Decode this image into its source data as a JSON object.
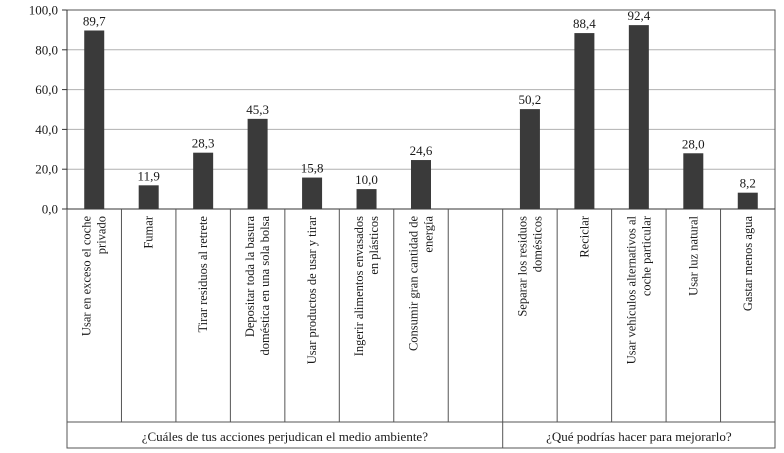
{
  "chart_data": {
    "type": "bar",
    "ylim": [
      0,
      100
    ],
    "yticks": [
      "0,0",
      "20,0",
      "40,0",
      "60,0",
      "80,0",
      "100,0"
    ],
    "ytick_values": [
      0,
      20,
      40,
      60,
      80,
      100
    ],
    "grid": true,
    "bar_color": "#3a3a3a",
    "grid_color": "#b0b0b0",
    "groups": [
      {
        "label": "¿Cuáles de tus acciones perjudican el medio ambiente?",
        "categories": [
          {
            "label": [
              "Usar en exceso el coche",
              "privado"
            ],
            "value": 89.7,
            "value_label": "89,7"
          },
          {
            "label": [
              "Fumar"
            ],
            "value": 11.9,
            "value_label": "11,9"
          },
          {
            "label": [
              "Tirar residuos al retrete"
            ],
            "value": 28.3,
            "value_label": "28,3"
          },
          {
            "label": [
              "Depositar toda la basura",
              "doméstica en una sola bolsa"
            ],
            "value": 45.3,
            "value_label": "45,3"
          },
          {
            "label": [
              "Usar productos de usar y tirar"
            ],
            "value": 15.8,
            "value_label": "15,8"
          },
          {
            "label": [
              "Ingerir alimentos envasados",
              "en plásticos"
            ],
            "value": 10.0,
            "value_label": "10,0"
          },
          {
            "label": [
              "Consumir gran cantidad de",
              "energía"
            ],
            "value": 24.6,
            "value_label": "24,6"
          },
          {
            "label": [],
            "value": null,
            "value_label": ""
          }
        ]
      },
      {
        "label": "¿Qué podrías hacer para mejorarlo?",
        "categories": [
          {
            "label": [
              "Separar los residuos",
              "domésticos"
            ],
            "value": 50.2,
            "value_label": "50,2"
          },
          {
            "label": [
              "Reciclar"
            ],
            "value": 88.4,
            "value_label": "88,4"
          },
          {
            "label": [
              "Usar vehículos alternativos al",
              "coche particular"
            ],
            "value": 92.4,
            "value_label": "92,4"
          },
          {
            "label": [
              "Usar luz natural"
            ],
            "value": 28.0,
            "value_label": "28,0"
          },
          {
            "label": [
              "Gastar menos agua"
            ],
            "value": 8.2,
            "value_label": "8,2"
          }
        ]
      }
    ]
  }
}
